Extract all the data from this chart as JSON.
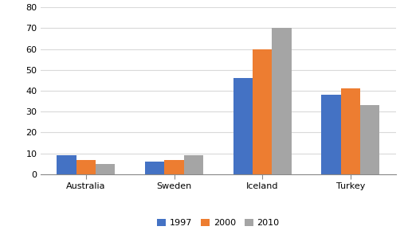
{
  "categories": [
    "Australia",
    "Sweden",
    "Iceland",
    "Turkey"
  ],
  "series": {
    "1997": [
      9,
      6,
      46,
      38
    ],
    "2000": [
      7,
      7,
      60,
      41
    ],
    "2010": [
      5,
      9,
      70,
      33
    ]
  },
  "series_colors": {
    "1997": "#4472C4",
    "2000": "#ED7D31",
    "2010": "#A5A5A5"
  },
  "series_labels": [
    "1997",
    "2000",
    "2010"
  ],
  "ylim": [
    0,
    80
  ],
  "yticks": [
    0,
    10,
    20,
    30,
    40,
    50,
    60,
    70,
    80
  ],
  "background_color": "#ffffff",
  "bar_width": 0.22,
  "grid_color": "#d9d9d9",
  "tick_fontsize": 8,
  "legend_fontsize": 8
}
